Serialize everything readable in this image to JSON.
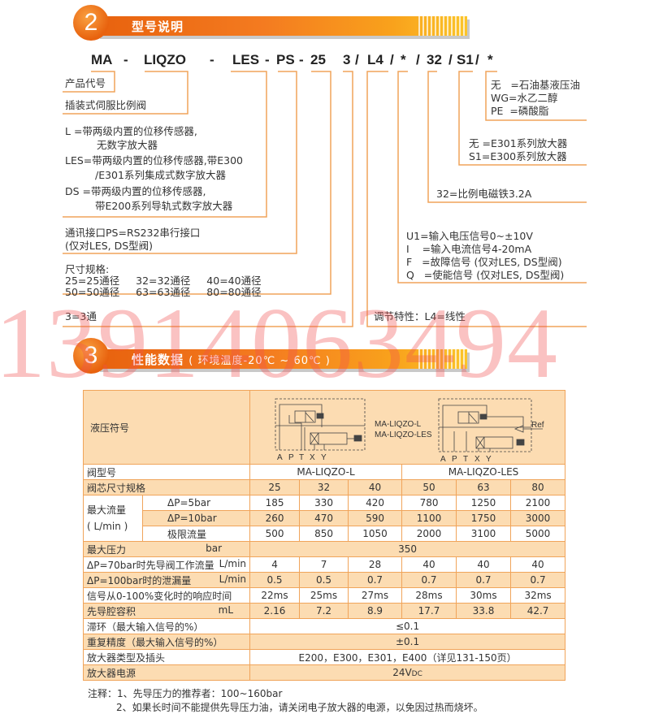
{
  "section2": {
    "number": "2",
    "title": "型号说明"
  },
  "code": {
    "parts": [
      "MA",
      "-",
      "LIQZO",
      "-",
      "LES",
      "-",
      "PS",
      "-",
      "25",
      "3",
      "/",
      "L4",
      "/",
      "*",
      "/",
      "32",
      "/",
      "S1",
      "/",
      "*"
    ]
  },
  "left_notes": {
    "product_code": "产品代号",
    "valve_type": "插装式伺服比例阀",
    "l_line1": "L     =带两级内置的位移传感器,",
    "l_line2": "无数字放大器",
    "les_line1": "LES=带两级内置的位移传感器,带E300",
    "les_line2": "/E301系列集成式数字放大器",
    "ds_line1": "DS  =带两级内置的位移传感器,",
    "ds_line2": "带E200系列导轨式数字放大器",
    "ps_line1": "通讯接口PS=RS232串行接口",
    "ps_line2": "(仅对LES, DS型阀)",
    "size_title": "尺寸规格:",
    "size_row1": "25=25通径     32=32通径     40=40通径",
    "size_row2": "50=50通径     63=63通径     80=80通径",
    "ways": "3=3通"
  },
  "right_notes": {
    "fluid_1": "无   =石油基液压油",
    "fluid_2": "WG=水乙二醇",
    "fluid_3": "PE  =磷酸脂",
    "amp_1": "无 =E301系列放大器",
    "amp_2": "S1=E300系列放大器",
    "solenoid": "32=比例电磁铁3.2A",
    "sig_1": "U1=输入电压信号0~±10V",
    "sig_2": "I    =输入电流信号4-20mA",
    "sig_3": "F   =故障信号 (仅对LES, DS型阀)",
    "sig_4": "Q   =使能信号 (仅对LES, DS型阀)",
    "regulation": "调节特性：L4=线性"
  },
  "watermark": "13914063494",
  "section3": {
    "number": "3",
    "title": "性能数据",
    "subtitle": "( 环境温度-20℃ ~ 60℃ )"
  },
  "table": {
    "symbol_label": "液压符号",
    "symbol_caption_1": "MA-LIQZO-L",
    "symbol_caption_2": "MA-LIQZO-LES",
    "ports": [
      "A",
      "P",
      "T",
      "X",
      "Y"
    ],
    "ref_label": "Ref",
    "model_label": "阀型号",
    "model_l": "MA-LIQZO-L",
    "model_les": "MA-LIQZO-LES",
    "size_label": "阀芯尺寸规格",
    "sizes": [
      "25",
      "32",
      "40",
      "50",
      "63",
      "80"
    ],
    "flow_label": "最大流量",
    "flow_unit": "( L/min )",
    "flow_rows": [
      {
        "label": "ΔP=5bar",
        "values": [
          "185",
          "330",
          "420",
          "780",
          "1250",
          "2100"
        ]
      },
      {
        "label": "ΔP=10bar",
        "values": [
          "260",
          "470",
          "590",
          "1100",
          "1750",
          "3000"
        ]
      },
      {
        "label": "极限流量",
        "values": [
          "500",
          "850",
          "1050",
          "2000",
          "3100",
          "5000"
        ]
      }
    ],
    "pressure_label": "最大压力",
    "pressure_unit": "bar",
    "pressure_value": "350",
    "pilot_flow_label": "ΔP=70bar时先导阀工作流量",
    "pilot_flow_unit": "L/min",
    "pilot_flow_values": [
      "4",
      "7",
      "28",
      "40",
      "40",
      "40"
    ],
    "leak_label": "ΔP=100bar时的泄漏量",
    "leak_unit": "L/min",
    "leak_values": [
      "0.5",
      "0.5",
      "0.7",
      "0.7",
      "0.7",
      "0.7"
    ],
    "response_label": "信号从0-100%变化时的响应时间",
    "response_values": [
      "22ms",
      "25ms",
      "27ms",
      "28ms",
      "30ms",
      "32ms"
    ],
    "volume_label": "先导腔容积",
    "volume_unit": "mL",
    "volume_values": [
      "2.16",
      "7.2",
      "8.9",
      "17.7",
      "33.8",
      "42.7"
    ],
    "hysteresis_label": "滞环（最大输入信号的%）",
    "hysteresis_value": "≤0.1",
    "repeat_label": "重复精度（最大输入信号的%）",
    "repeat_value": "±0.1",
    "amp_label": "放大器类型及插头",
    "amp_value": "E200，E300，E301，E400（详见131-150页）",
    "power_label": "放大器电源",
    "power_value": "24V",
    "power_sub": "DC"
  },
  "notes": {
    "note1": "注释：1、先导压力的推荐者：100~160bar",
    "note2": "2、如果长时间不能提供先导压力油，请关闭电子放大器的电源，以免因过热而烧坏。"
  },
  "colors": {
    "accent": "#f47b20",
    "line": "#f0a45a",
    "row_fill": "#fcdcb2",
    "watermark": "#f05050"
  }
}
